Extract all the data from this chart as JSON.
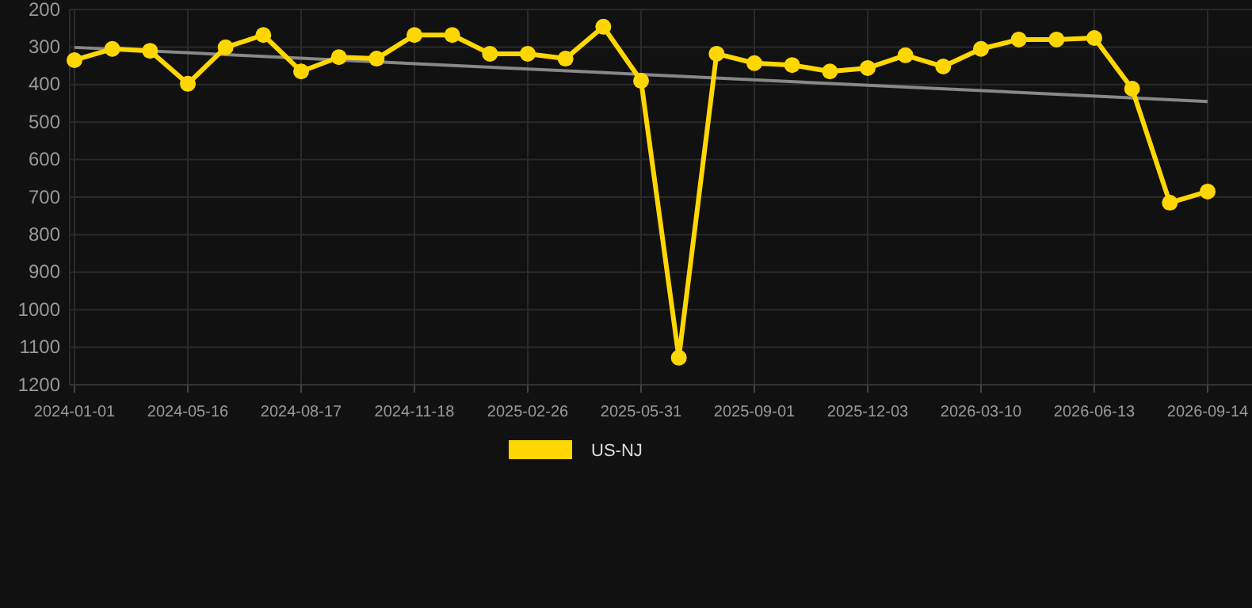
{
  "chart_data": {
    "type": "line",
    "categories": [
      "2024-01-01",
      null,
      null,
      "2024-05-16",
      null,
      null,
      "2024-08-17",
      null,
      null,
      "2024-11-18",
      null,
      null,
      "2025-02-26",
      null,
      null,
      "2025-05-31",
      null,
      null,
      "2025-09-01",
      null,
      null,
      "2025-12-03",
      null,
      null,
      "2026-03-10",
      null,
      null,
      "2026-06-13",
      null,
      null,
      "2026-09-14"
    ],
    "series": [
      {
        "name": "US-NJ",
        "color": "#ffd700",
        "marker": "circle",
        "values": [
          335,
          305,
          310,
          398,
          301,
          268,
          365,
          327,
          331,
          268,
          268,
          318,
          318,
          331,
          246,
          390,
          1128,
          318,
          343,
          348,
          365,
          356,
          322,
          352,
          305,
          280,
          280,
          276,
          411,
          715,
          685
        ]
      },
      {
        "type": "line",
        "color": "#888888",
        "marker": "none",
        "values": [
          301,
          null,
          null,
          null,
          null,
          null,
          null,
          null,
          null,
          null,
          null,
          null,
          null,
          null,
          null,
          null,
          null,
          null,
          null,
          null,
          null,
          null,
          null,
          null,
          null,
          null,
          null,
          null,
          null,
          null,
          445
        ]
      }
    ],
    "ylim": [
      1200,
      200
    ],
    "yticks": [
      200,
      300,
      400,
      500,
      600,
      700,
      800,
      900,
      1000,
      1100,
      1200
    ],
    "grid": true,
    "legend": "bottom",
    "line_style": "solid"
  }
}
